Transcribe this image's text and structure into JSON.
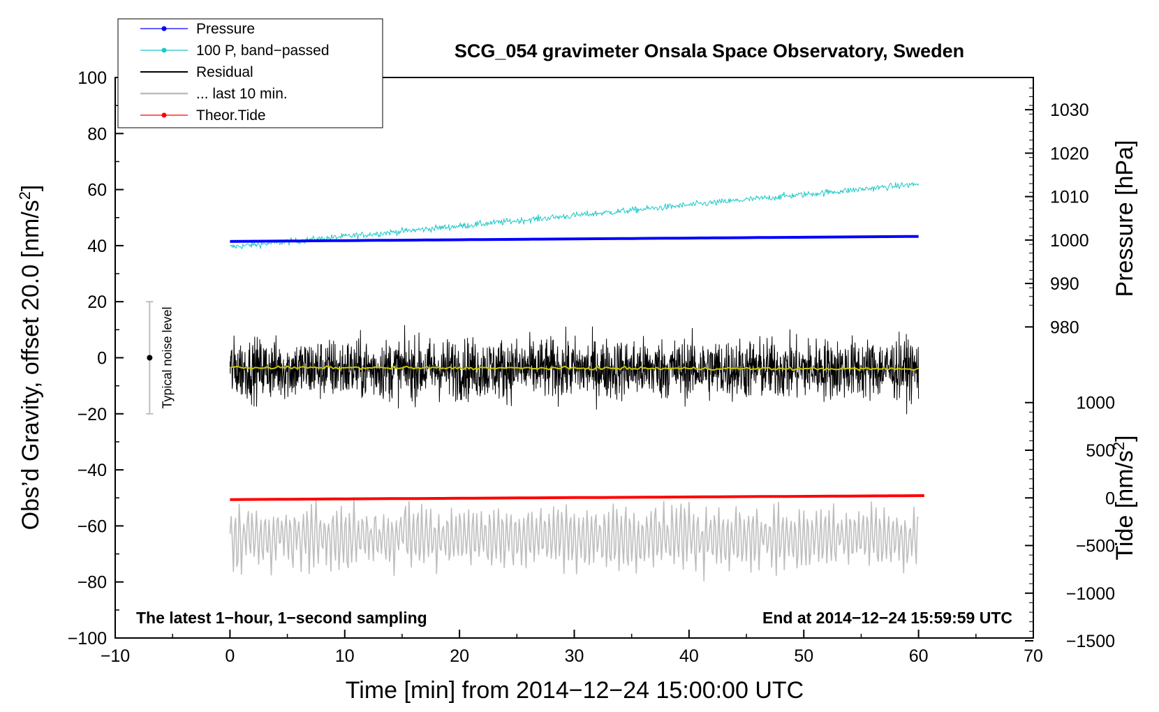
{
  "chart_data": {
    "type": "line",
    "title": "SCG_054 gravimeter Onsala Space Observatory, Sweden",
    "xlabel": "Time [min] from 2014−12−24 15:00:00 UTC",
    "ylabel_left": "Obs’d Gravity, offset 20.0 [nm/s",
    "ylabel_left_sup": "2",
    "ylabel_left_end": "]",
    "ylabel_right_pressure": "Pressure [hPa]",
    "ylabel_right_tide": "Tide [nm/s",
    "ylabel_right_tide_sup": "2",
    "ylabel_right_tide_end": "]",
    "xlim": [
      -10,
      70
    ],
    "ylim_left": [
      -100,
      100
    ],
    "x_ticks": [
      "−10",
      "0",
      "10",
      "20",
      "30",
      "40",
      "50",
      "60",
      "70"
    ],
    "y_ticks_left": [
      "100",
      "80",
      "60",
      "40",
      "20",
      "0",
      "−20",
      "−40",
      "−60",
      "−80",
      "−100"
    ],
    "pressure_ticks": [
      "1030",
      "1020",
      "1010",
      "1000",
      "990",
      "980"
    ],
    "tide_ticks": [
      "1000",
      "500",
      "0",
      "−500",
      "−1000",
      "−1500"
    ],
    "note_left": "The latest 1−hour, 1−second sampling",
    "note_right": "End at 2014−12−24 15:59:59 UTC",
    "noise_label": "Typical noise level",
    "noise_bar": {
      "x": -7,
      "center": 0,
      "low": -20,
      "high": 20
    },
    "legend": [
      {
        "label": "Pressure",
        "color": "#0000ff",
        "marker": true
      },
      {
        "label": "100 P, band−passed",
        "color": "#1ec8c8",
        "marker": true
      },
      {
        "label": "Residual",
        "color": "#000000",
        "marker": false
      },
      {
        "label": "... last 10 min.",
        "color": "#bebebe",
        "marker": false
      },
      {
        "label": "Theor.Tide",
        "color": "#ff0000",
        "marker": true
      }
    ],
    "series": [
      {
        "name": "Pressure",
        "color": "#0000ff",
        "x_range": [
          0,
          60
        ],
        "start": 41.5,
        "end": 43.3,
        "noise": 0
      },
      {
        "name": "100 P, band−passed",
        "color": "#1ec8c8",
        "x_range": [
          0,
          60
        ],
        "start": 39.5,
        "end": 62.0,
        "noise": 1.3
      },
      {
        "name": "Residual",
        "color": "#000000",
        "x_range": [
          0,
          60
        ],
        "start": -4,
        "end": -4,
        "noise": 6
      },
      {
        "name": "Residual smoothed",
        "color": "#c8c800",
        "x_range": [
          0,
          60
        ],
        "start": -3.5,
        "end": -4.0,
        "noise": 0.5
      },
      {
        "name": "... last 10 min.",
        "color": "#bebebe",
        "x_range": [
          0,
          60
        ],
        "start": -64,
        "end": -64,
        "noise": 8
      },
      {
        "name": "Theor.Tide",
        "color": "#ff0000",
        "x_range": [
          0,
          60.5
        ],
        "start": -50.6,
        "end": -49.2,
        "noise": 0
      }
    ]
  }
}
